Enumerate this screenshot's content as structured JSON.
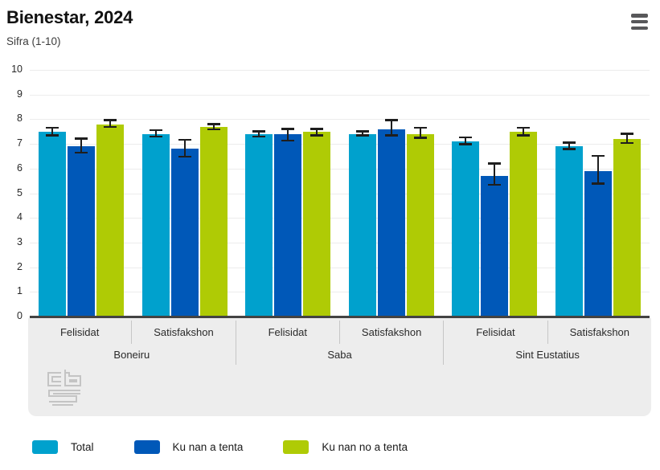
{
  "header": {
    "title": "Bienestar, 2024",
    "subtitle": "Sifra (1-10)",
    "menu_icon": "hamburger-menu-icon"
  },
  "colors": {
    "series_total": "#00a1cd",
    "series_tenta": "#0058b8",
    "series_no_tenta": "#afcb05",
    "axis_line": "#434343",
    "grid_line": "#ececec",
    "band_background": "#ededed",
    "band_divider": "#c6c6c6",
    "error_bar": "#1e1e1e",
    "menu_icon": "#58585a",
    "logo_gray": "#c4c4c4"
  },
  "chart_data": {
    "type": "bar",
    "title": "Bienestar, 2024",
    "ylabel": "Sifra (1-10)",
    "xlabel": "",
    "ylim": [
      0,
      10
    ],
    "yticks": [
      0,
      1,
      2,
      3,
      4,
      5,
      6,
      7,
      8,
      9,
      10
    ],
    "grid": true,
    "legend_position": "bottom",
    "islands": [
      {
        "label": "Boneiru"
      },
      {
        "label": "Saba"
      },
      {
        "label": "Sint Eustatius"
      }
    ],
    "categories": [
      "Felisidat",
      "Satisfakshon",
      "Felisidat",
      "Satisfakshon",
      "Felisidat",
      "Satisfakshon"
    ],
    "series": [
      {
        "name": "Total",
        "color": "#00a1cd",
        "values": [
          7.5,
          7.4,
          7.4,
          7.4,
          7.1,
          6.9
        ],
        "errors_low": [
          7.3,
          7.25,
          7.25,
          7.3,
          6.95,
          6.75
        ],
        "errors_high": [
          7.7,
          7.6,
          7.55,
          7.55,
          7.3,
          7.1
        ]
      },
      {
        "name": "Ku nan a tenta",
        "color": "#0058b8",
        "values": [
          6.9,
          6.8,
          7.4,
          7.6,
          5.7,
          5.9
        ],
        "errors_low": [
          6.6,
          6.45,
          7.1,
          7.3,
          5.3,
          5.35
        ],
        "errors_high": [
          7.25,
          7.2,
          7.65,
          8.0,
          6.25,
          6.55
        ]
      },
      {
        "name": "Ku nan no a tenta",
        "color": "#afcb05",
        "values": [
          7.8,
          7.7,
          7.5,
          7.4,
          7.5,
          7.2
        ],
        "errors_low": [
          7.65,
          7.55,
          7.3,
          7.2,
          7.3,
          7.0
        ],
        "errors_high": [
          8.0,
          7.85,
          7.65,
          7.7,
          7.7,
          7.45
        ]
      }
    ]
  },
  "legend": {
    "items": [
      {
        "label": "Total",
        "color": "#00a1cd"
      },
      {
        "label": "Ku nan a tenta",
        "color": "#0058b8"
      },
      {
        "label": "Ku nan no a tenta",
        "color": "#afcb05"
      }
    ]
  },
  "footer": {
    "logo": "cbs-logo"
  }
}
